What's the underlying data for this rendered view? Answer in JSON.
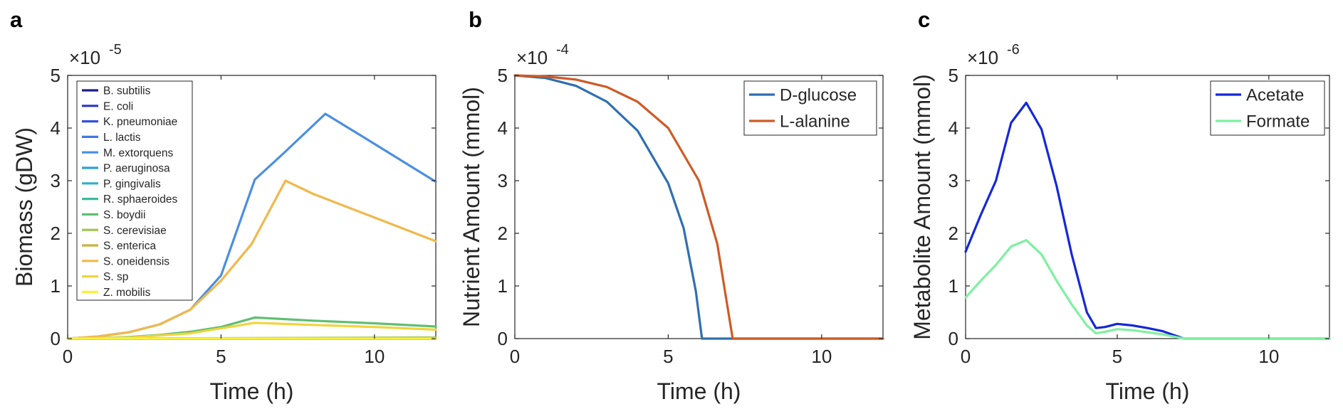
{
  "chart_data": [
    {
      "type": "line",
      "panel": "a",
      "xlabel": "Time (h)",
      "ylabel": "Biomass (gDW)",
      "multiplier_text": "×10",
      "multiplier_exp": "-5",
      "xlim": [
        0,
        12
      ],
      "ylim": [
        0,
        5
      ],
      "xticks": [
        0,
        5,
        10
      ],
      "yticks": [
        0,
        1,
        2,
        3,
        4,
        5
      ],
      "grid": false,
      "legend": "top-left",
      "series": [
        {
          "name": "B. subtilis",
          "color": "#201c8a",
          "x": [
            0,
            12
          ],
          "y": [
            0.0,
            0.0
          ]
        },
        {
          "name": "E. coli",
          "color": "#2a36c4",
          "x": [
            0,
            12
          ],
          "y": [
            0.0,
            0.0
          ]
        },
        {
          "name": "K. pneumoniae",
          "color": "#3550d8",
          "x": [
            0,
            12
          ],
          "y": [
            0.0,
            0.0
          ]
        },
        {
          "name": "L. lactis",
          "color": "#3f78e2",
          "x": [
            0,
            12
          ],
          "y": [
            0.0,
            0.0
          ]
        },
        {
          "name": "M. extorquens",
          "color": "#4a8fe0",
          "x": [
            0,
            1,
            2,
            3,
            4,
            5,
            6.1,
            7,
            8.4,
            10,
            12
          ],
          "y": [
            0.0,
            0.04,
            0.12,
            0.27,
            0.55,
            1.2,
            3.02,
            3.5,
            4.27,
            3.7,
            2.98
          ]
        },
        {
          "name": "P. aeruginosa",
          "color": "#2f9fd6",
          "x": [
            0,
            12
          ],
          "y": [
            0.0,
            0.0
          ]
        },
        {
          "name": "P. gingivalis",
          "color": "#2fb1c8",
          "x": [
            0,
            12
          ],
          "y": [
            0.0,
            0.0
          ]
        },
        {
          "name": "R. sphaeroides",
          "color": "#3dbb9c",
          "x": [
            0,
            12
          ],
          "y": [
            0.0,
            0.0
          ]
        },
        {
          "name": "S. boydii",
          "color": "#60bf72",
          "x": [
            0,
            1,
            2,
            3,
            4,
            5,
            6.1,
            8,
            10,
            12
          ],
          "y": [
            0.0,
            0.01,
            0.03,
            0.07,
            0.13,
            0.22,
            0.4,
            0.34,
            0.29,
            0.23
          ]
        },
        {
          "name": "S. cerevisiae",
          "color": "#9fc44c",
          "x": [
            0,
            12
          ],
          "y": [
            0.0,
            0.02
          ]
        },
        {
          "name": "S. enterica",
          "color": "#c8b43c",
          "x": [
            0,
            12
          ],
          "y": [
            0.0,
            0.0
          ]
        },
        {
          "name": "S. oneidensis",
          "color": "#f1b84a",
          "x": [
            0,
            1,
            2,
            3,
            4,
            5,
            6,
            7.1,
            8,
            10,
            12
          ],
          "y": [
            0.0,
            0.04,
            0.12,
            0.27,
            0.55,
            1.1,
            1.8,
            3.0,
            2.75,
            2.3,
            1.85
          ]
        },
        {
          "name": "S. sp",
          "color": "#f0d43c",
          "x": [
            0,
            2,
            4,
            6.1,
            8,
            10,
            12
          ],
          "y": [
            0.0,
            0.02,
            0.1,
            0.3,
            0.26,
            0.22,
            0.17
          ]
        },
        {
          "name": "Z. mobilis",
          "color": "#f8f33a",
          "x": [
            0,
            12
          ],
          "y": [
            0.0,
            0.0
          ]
        }
      ]
    },
    {
      "type": "line",
      "panel": "b",
      "xlabel": "Time (h)",
      "ylabel": "Nutrient Amount (mmol)",
      "multiplier_text": "×10",
      "multiplier_exp": "-4",
      "xlim": [
        0,
        12
      ],
      "ylim": [
        0,
        5
      ],
      "xticks": [
        0,
        5,
        10
      ],
      "yticks": [
        0,
        1,
        2,
        3,
        4,
        5
      ],
      "grid": false,
      "legend": "top-right",
      "series": [
        {
          "name": "D-glucose",
          "color": "#2f6fb0",
          "x": [
            0,
            1,
            2,
            3,
            4,
            5,
            5.5,
            5.9,
            6.1,
            12
          ],
          "y": [
            5.0,
            4.95,
            4.8,
            4.5,
            3.95,
            2.95,
            2.1,
            0.9,
            0.0,
            0.0
          ]
        },
        {
          "name": "L-alanine",
          "color": "#cf5a26",
          "x": [
            0,
            1,
            2,
            3,
            4,
            5,
            6,
            6.6,
            7.1,
            12
          ],
          "y": [
            5.0,
            4.98,
            4.92,
            4.78,
            4.5,
            4.0,
            3.0,
            1.8,
            0.0,
            0.0
          ]
        }
      ]
    },
    {
      "type": "line",
      "panel": "c",
      "xlabel": "Time (h)",
      "ylabel": "Metabolite Amount (mmol)",
      "multiplier_text": "×10",
      "multiplier_exp": "-6",
      "xlim": [
        0,
        12
      ],
      "ylim": [
        0,
        5
      ],
      "xticks": [
        0,
        5,
        10
      ],
      "yticks": [
        0,
        1,
        2,
        3,
        4,
        5
      ],
      "grid": false,
      "legend": "top-right",
      "series": [
        {
          "name": "Acetate",
          "color": "#1428d8",
          "x": [
            0,
            0.5,
            1.0,
            1.5,
            2.0,
            2.5,
            3.0,
            3.5,
            4.0,
            4.3,
            4.6,
            5.0,
            5.5,
            6.0,
            6.5,
            7.2,
            8,
            10,
            12
          ],
          "y": [
            1.65,
            2.35,
            3.0,
            4.1,
            4.48,
            3.98,
            2.9,
            1.6,
            0.5,
            0.2,
            0.22,
            0.28,
            0.25,
            0.2,
            0.14,
            0.0,
            0.0,
            0.0,
            0.0
          ]
        },
        {
          "name": "Formate",
          "color": "#7ef0a0",
          "x": [
            0,
            0.5,
            1.0,
            1.5,
            2.0,
            2.5,
            3.0,
            3.5,
            4.0,
            4.3,
            4.6,
            5.0,
            5.5,
            6.0,
            6.5,
            7.2,
            8,
            10,
            12
          ],
          "y": [
            0.78,
            1.1,
            1.4,
            1.75,
            1.87,
            1.6,
            1.1,
            0.65,
            0.25,
            0.1,
            0.13,
            0.18,
            0.16,
            0.12,
            0.08,
            0.0,
            0.0,
            0.0,
            0.0
          ]
        }
      ]
    }
  ]
}
